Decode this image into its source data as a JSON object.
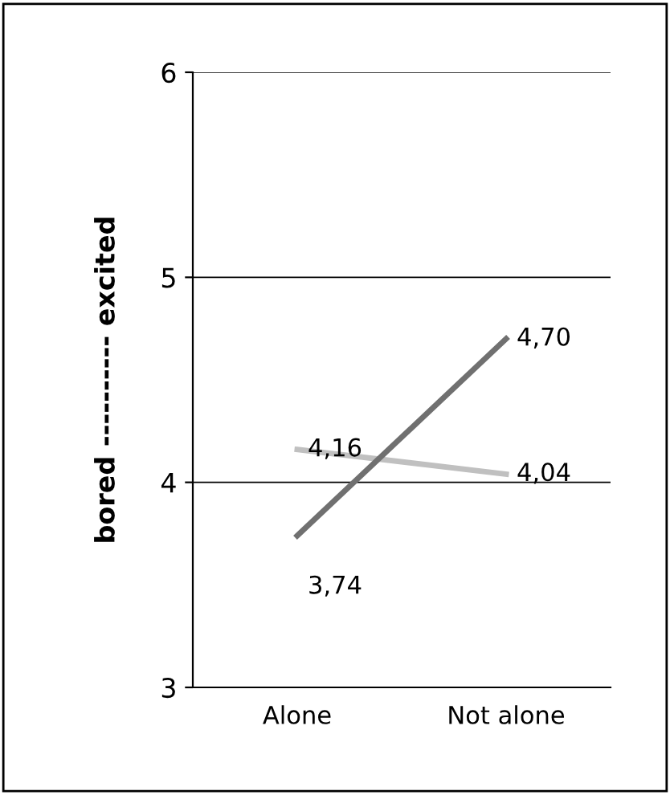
{
  "chart_data": {
    "type": "line",
    "ylabel": "bored ---------- excited",
    "categories": [
      "Alone",
      "Not alone"
    ],
    "series": [
      {
        "color": "#c0c0c0",
        "values": [
          4.16,
          4.04
        ],
        "value_labels": [
          "4,16",
          "4,04"
        ]
      },
      {
        "color": "#707070",
        "values": [
          3.74,
          4.7
        ],
        "value_labels": [
          "3,74",
          "4,70"
        ]
      }
    ],
    "ylim": [
      3,
      6
    ],
    "yticks": [
      3,
      4,
      5,
      6
    ],
    "grid": "y",
    "legend": false,
    "marker": "none",
    "line_style": "solid"
  }
}
